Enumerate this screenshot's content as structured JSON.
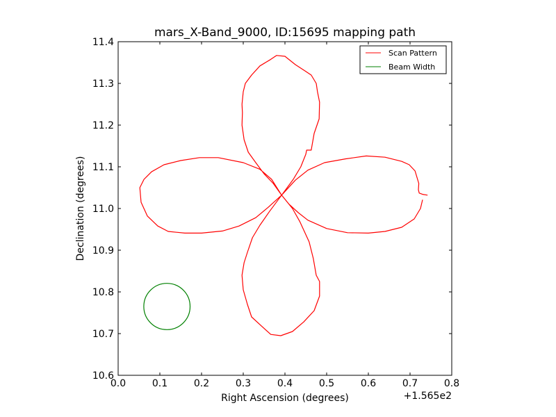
{
  "chart_data": {
    "type": "line",
    "title": "mars_X-Band_9000, ID:15695 mapping path",
    "xlabel": "Right Ascension (degrees)",
    "ylabel": "Declination (degrees)",
    "x_offset_label": "+1.565e2",
    "xlim": [
      0.0,
      0.8
    ],
    "ylim": [
      10.6,
      11.4
    ],
    "xticks": [
      "0.0",
      "0.1",
      "0.2",
      "0.3",
      "0.4",
      "0.5",
      "0.6",
      "0.7",
      "0.8"
    ],
    "yticks": [
      "10.6",
      "10.7",
      "10.8",
      "10.9",
      "11.0",
      "11.1",
      "11.2",
      "11.3",
      "11.4"
    ],
    "grid": false,
    "legend_position": "top-right",
    "series": [
      {
        "name": "Scan Pattern",
        "color": "#ff0000",
        "style": "line",
        "points": [
          [
            0.742,
            11.032
          ],
          [
            0.73,
            11.034
          ],
          [
            0.722,
            11.037
          ],
          [
            0.72,
            11.045
          ],
          [
            0.721,
            11.06
          ],
          [
            0.712,
            11.09
          ],
          [
            0.698,
            11.105
          ],
          [
            0.68,
            11.113
          ],
          [
            0.64,
            11.123
          ],
          [
            0.595,
            11.126
          ],
          [
            0.545,
            11.119
          ],
          [
            0.495,
            11.11
          ],
          [
            0.455,
            11.092
          ],
          [
            0.425,
            11.068
          ],
          [
            0.392,
            11.032
          ],
          [
            0.36,
            11.003
          ],
          [
            0.33,
            10.978
          ],
          [
            0.29,
            10.958
          ],
          [
            0.25,
            10.946
          ],
          [
            0.2,
            10.941
          ],
          [
            0.16,
            10.941
          ],
          [
            0.12,
            10.945
          ],
          [
            0.095,
            10.958
          ],
          [
            0.07,
            10.982
          ],
          [
            0.055,
            11.015
          ],
          [
            0.052,
            11.05
          ],
          [
            0.062,
            11.07
          ],
          [
            0.08,
            11.088
          ],
          [
            0.11,
            11.105
          ],
          [
            0.15,
            11.115
          ],
          [
            0.195,
            11.122
          ],
          [
            0.24,
            11.122
          ],
          [
            0.3,
            11.11
          ],
          [
            0.34,
            11.094
          ],
          [
            0.368,
            11.07
          ],
          [
            0.392,
            11.032
          ],
          [
            0.418,
            11.0
          ],
          [
            0.436,
            10.968
          ],
          [
            0.458,
            10.92
          ],
          [
            0.468,
            10.88
          ],
          [
            0.475,
            10.84
          ],
          [
            0.483,
            10.825
          ],
          [
            0.483,
            10.79
          ],
          [
            0.47,
            10.755
          ],
          [
            0.445,
            10.728
          ],
          [
            0.418,
            10.705
          ],
          [
            0.39,
            10.695
          ],
          [
            0.366,
            10.698
          ],
          [
            0.345,
            10.717
          ],
          [
            0.32,
            10.74
          ],
          [
            0.31,
            10.77
          ],
          [
            0.3,
            10.805
          ],
          [
            0.297,
            10.84
          ],
          [
            0.302,
            10.87
          ],
          [
            0.31,
            10.895
          ],
          [
            0.322,
            10.93
          ],
          [
            0.34,
            10.96
          ],
          [
            0.363,
            10.993
          ],
          [
            0.392,
            11.032
          ],
          [
            0.42,
            11.07
          ],
          [
            0.438,
            11.1
          ],
          [
            0.45,
            11.13
          ],
          [
            0.452,
            11.14
          ],
          [
            0.463,
            11.14
          ],
          [
            0.47,
            11.18
          ],
          [
            0.482,
            11.215
          ],
          [
            0.483,
            11.255
          ],
          [
            0.478,
            11.28
          ],
          [
            0.475,
            11.3
          ],
          [
            0.463,
            11.32
          ],
          [
            0.448,
            11.33
          ],
          [
            0.425,
            11.345
          ],
          [
            0.4,
            11.365
          ],
          [
            0.38,
            11.367
          ],
          [
            0.365,
            11.357
          ],
          [
            0.34,
            11.342
          ],
          [
            0.32,
            11.32
          ],
          [
            0.305,
            11.3
          ],
          [
            0.3,
            11.28
          ],
          [
            0.297,
            11.25
          ],
          [
            0.298,
            11.23
          ],
          [
            0.297,
            11.2
          ],
          [
            0.302,
            11.165
          ],
          [
            0.312,
            11.135
          ],
          [
            0.33,
            11.11
          ],
          [
            0.35,
            11.083
          ],
          [
            0.372,
            11.06
          ],
          [
            0.392,
            11.032
          ],
          [
            0.41,
            11.01
          ],
          [
            0.432,
            10.99
          ],
          [
            0.455,
            10.972
          ],
          [
            0.5,
            10.952
          ],
          [
            0.55,
            10.942
          ],
          [
            0.6,
            10.941
          ],
          [
            0.64,
            10.945
          ],
          [
            0.68,
            10.955
          ],
          [
            0.71,
            10.975
          ],
          [
            0.725,
            11.0
          ],
          [
            0.73,
            11.021
          ]
        ]
      },
      {
        "name": "Beam Width",
        "color": "#008000",
        "style": "circle",
        "center": [
          0.117,
          10.765
        ],
        "radius": 0.0555
      }
    ]
  }
}
